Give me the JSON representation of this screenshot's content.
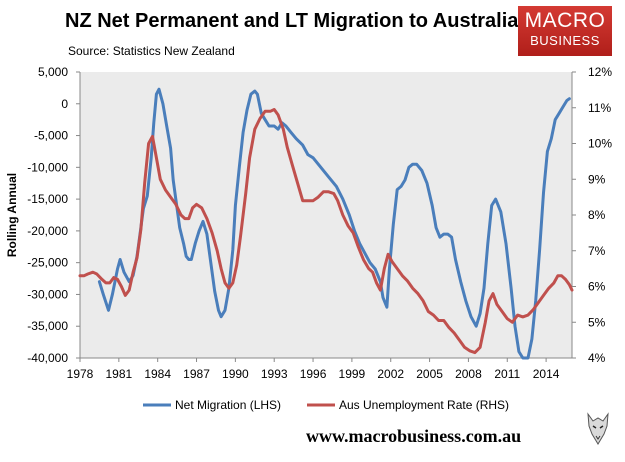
{
  "header": {
    "title": "NZ Net Permanent and LT Migration to Australia",
    "subtitle": "Source: Statistics New Zealand"
  },
  "logo": {
    "line1": "MACRO",
    "line2": "BUSINESS"
  },
  "footer": {
    "website": "www.macrobusiness.com.au"
  },
  "colors": {
    "net_migration": "#4a7ebb",
    "unemployment": "#c0504d",
    "plot_background": "#ebebeb"
  },
  "chart_data": {
    "type": "line",
    "title": "NZ Net Permanent and LT Migration to Australia",
    "subtitle": "Source: Statistics New Zealand",
    "ylabel": "Rolling Annual",
    "xlim": [
      1978,
      2016
    ],
    "ylim_left": [
      -40000,
      5000
    ],
    "ylim_right": [
      4,
      12
    ],
    "grid": false,
    "legend": "bottom",
    "x_ticks": [
      "1978",
      "1981",
      "1984",
      "1987",
      "1990",
      "1993",
      "1996",
      "1999",
      "2002",
      "2005",
      "2008",
      "2011",
      "2014"
    ],
    "y_ticks_left": [
      "5,000",
      "0",
      "-5,000",
      "-10,000",
      "-15,000",
      "-20,000",
      "-25,000",
      "-30,000",
      "-35,000",
      "-40,000"
    ],
    "y_ticks_right": [
      "12%",
      "11%",
      "10%",
      "9%",
      "8%",
      "7%",
      "6%",
      "5%",
      "4%"
    ],
    "series": [
      {
        "name": "Net Migration (LHS)",
        "axis": "left",
        "points": [
          [
            1979.5,
            -28000
          ],
          [
            1979.8,
            -30000
          ],
          [
            1980.2,
            -32500
          ],
          [
            1980.5,
            -30000
          ],
          [
            1980.9,
            -26000
          ],
          [
            1981.1,
            -24500
          ],
          [
            1981.4,
            -26500
          ],
          [
            1981.8,
            -28000
          ],
          [
            1982.1,
            -27000
          ],
          [
            1982.4,
            -24000
          ],
          [
            1982.6,
            -21000
          ],
          [
            1982.9,
            -16500
          ],
          [
            1983.2,
            -14500
          ],
          [
            1983.5,
            -8500
          ],
          [
            1983.7,
            -3000
          ],
          [
            1983.9,
            1500
          ],
          [
            1984.1,
            2300
          ],
          [
            1984.4,
            0
          ],
          [
            1984.7,
            -3500
          ],
          [
            1985.0,
            -7000
          ],
          [
            1985.2,
            -12000
          ],
          [
            1985.4,
            -15000
          ],
          [
            1985.7,
            -19500
          ],
          [
            1986.0,
            -22000
          ],
          [
            1986.2,
            -24000
          ],
          [
            1986.4,
            -24500
          ],
          [
            1986.6,
            -24500
          ],
          [
            1986.9,
            -22000
          ],
          [
            1987.2,
            -20000
          ],
          [
            1987.5,
            -18500
          ],
          [
            1987.8,
            -20500
          ],
          [
            1988.1,
            -25000
          ],
          [
            1988.4,
            -29500
          ],
          [
            1988.7,
            -32500
          ],
          [
            1988.9,
            -33500
          ],
          [
            1989.2,
            -32500
          ],
          [
            1989.5,
            -29000
          ],
          [
            1989.8,
            -23000
          ],
          [
            1990.0,
            -16000
          ],
          [
            1990.3,
            -10000
          ],
          [
            1990.6,
            -4500
          ],
          [
            1990.9,
            -1000
          ],
          [
            1991.2,
            1500
          ],
          [
            1991.5,
            2000
          ],
          [
            1991.7,
            1500
          ],
          [
            1992.0,
            -1500
          ],
          [
            1992.3,
            -2500
          ],
          [
            1992.6,
            -3500
          ],
          [
            1993.0,
            -3500
          ],
          [
            1993.3,
            -4000
          ],
          [
            1993.6,
            -3000
          ],
          [
            1993.9,
            -3500
          ],
          [
            1994.3,
            -4500
          ],
          [
            1994.7,
            -5500
          ],
          [
            1995.2,
            -6500
          ],
          [
            1995.6,
            -8000
          ],
          [
            1996.0,
            -8500
          ],
          [
            1996.6,
            -10000
          ],
          [
            1997.2,
            -11500
          ],
          [
            1997.8,
            -13000
          ],
          [
            1998.3,
            -15000
          ],
          [
            1998.8,
            -17500
          ],
          [
            1999.2,
            -20000
          ],
          [
            1999.6,
            -22000
          ],
          [
            2000.0,
            -23500
          ],
          [
            2000.4,
            -25000
          ],
          [
            2000.8,
            -26000
          ],
          [
            2001.2,
            -28000
          ],
          [
            2001.4,
            -30500
          ],
          [
            2001.7,
            -32000
          ],
          [
            2001.9,
            -26000
          ],
          [
            2002.2,
            -19000
          ],
          [
            2002.5,
            -13500
          ],
          [
            2002.8,
            -13000
          ],
          [
            2003.1,
            -12000
          ],
          [
            2003.4,
            -10000
          ],
          [
            2003.7,
            -9500
          ],
          [
            2004.0,
            -9500
          ],
          [
            2004.4,
            -10500
          ],
          [
            2004.8,
            -12500
          ],
          [
            2005.2,
            -16000
          ],
          [
            2005.5,
            -19500
          ],
          [
            2005.8,
            -21000
          ],
          [
            2006.1,
            -20500
          ],
          [
            2006.4,
            -20500
          ],
          [
            2006.7,
            -21000
          ],
          [
            2007.0,
            -24500
          ],
          [
            2007.4,
            -28000
          ],
          [
            2007.8,
            -31000
          ],
          [
            2008.2,
            -33500
          ],
          [
            2008.6,
            -35000
          ],
          [
            2008.9,
            -33000
          ],
          [
            2009.2,
            -29000
          ],
          [
            2009.5,
            -22000
          ],
          [
            2009.8,
            -16000
          ],
          [
            2010.1,
            -15000
          ],
          [
            2010.5,
            -17000
          ],
          [
            2010.9,
            -22000
          ],
          [
            2011.3,
            -29000
          ],
          [
            2011.6,
            -35000
          ],
          [
            2011.9,
            -39000
          ],
          [
            2012.2,
            -40000
          ],
          [
            2012.6,
            -40000
          ],
          [
            2012.9,
            -37000
          ],
          [
            2013.2,
            -31000
          ],
          [
            2013.5,
            -23000
          ],
          [
            2013.8,
            -14000
          ],
          [
            2014.1,
            -7500
          ],
          [
            2014.4,
            -5500
          ],
          [
            2014.7,
            -2500
          ],
          [
            2015.0,
            -1500
          ],
          [
            2015.3,
            -500
          ],
          [
            2015.6,
            500
          ],
          [
            2015.8,
            800
          ]
        ]
      },
      {
        "name": "Aus Unemployment Rate (RHS)",
        "axis": "right",
        "points": [
          [
            1978.0,
            6.3
          ],
          [
            1978.3,
            6.3
          ],
          [
            1978.6,
            6.35
          ],
          [
            1979.0,
            6.4
          ],
          [
            1979.3,
            6.35
          ],
          [
            1979.7,
            6.2
          ],
          [
            1980.0,
            6.1
          ],
          [
            1980.3,
            6.1
          ],
          [
            1980.6,
            6.25
          ],
          [
            1980.9,
            6.2
          ],
          [
            1981.2,
            6.0
          ],
          [
            1981.5,
            5.75
          ],
          [
            1981.8,
            5.9
          ],
          [
            1982.1,
            6.4
          ],
          [
            1982.4,
            6.8
          ],
          [
            1982.7,
            7.6
          ],
          [
            1983.0,
            8.9
          ],
          [
            1983.3,
            10.0
          ],
          [
            1983.6,
            10.2
          ],
          [
            1983.9,
            9.6
          ],
          [
            1984.2,
            9.0
          ],
          [
            1984.6,
            8.7
          ],
          [
            1985.0,
            8.5
          ],
          [
            1985.4,
            8.3
          ],
          [
            1985.8,
            8.0
          ],
          [
            1986.1,
            7.9
          ],
          [
            1986.4,
            7.9
          ],
          [
            1986.7,
            8.2
          ],
          [
            1987.0,
            8.3
          ],
          [
            1987.4,
            8.2
          ],
          [
            1987.8,
            7.9
          ],
          [
            1988.2,
            7.5
          ],
          [
            1988.6,
            7.0
          ],
          [
            1988.9,
            6.5
          ],
          [
            1989.2,
            6.1
          ],
          [
            1989.5,
            5.95
          ],
          [
            1989.8,
            6.1
          ],
          [
            1990.1,
            6.6
          ],
          [
            1990.4,
            7.4
          ],
          [
            1990.8,
            8.6
          ],
          [
            1991.1,
            9.6
          ],
          [
            1991.5,
            10.4
          ],
          [
            1991.9,
            10.7
          ],
          [
            1992.3,
            10.9
          ],
          [
            1992.7,
            10.9
          ],
          [
            1993.0,
            10.95
          ],
          [
            1993.3,
            10.8
          ],
          [
            1993.7,
            10.4
          ],
          [
            1994.0,
            9.9
          ],
          [
            1994.4,
            9.4
          ],
          [
            1994.8,
            8.9
          ],
          [
            1995.2,
            8.4
          ],
          [
            1995.6,
            8.4
          ],
          [
            1996.0,
            8.4
          ],
          [
            1996.4,
            8.5
          ],
          [
            1996.8,
            8.65
          ],
          [
            1997.2,
            8.65
          ],
          [
            1997.6,
            8.6
          ],
          [
            1997.9,
            8.4
          ],
          [
            1998.3,
            8.0
          ],
          [
            1998.7,
            7.7
          ],
          [
            1999.1,
            7.5
          ],
          [
            1999.5,
            7.1
          ],
          [
            1999.9,
            6.75
          ],
          [
            2000.3,
            6.5
          ],
          [
            2000.6,
            6.4
          ],
          [
            2000.9,
            6.1
          ],
          [
            2001.2,
            5.9
          ],
          [
            2001.5,
            6.5
          ],
          [
            2001.8,
            6.9
          ],
          [
            2002.1,
            6.7
          ],
          [
            2002.5,
            6.5
          ],
          [
            2002.9,
            6.3
          ],
          [
            2003.3,
            6.15
          ],
          [
            2003.7,
            5.95
          ],
          [
            2004.1,
            5.8
          ],
          [
            2004.5,
            5.6
          ],
          [
            2004.9,
            5.3
          ],
          [
            2005.3,
            5.2
          ],
          [
            2005.7,
            5.05
          ],
          [
            2006.1,
            5.05
          ],
          [
            2006.5,
            4.85
          ],
          [
            2006.9,
            4.7
          ],
          [
            2007.3,
            4.5
          ],
          [
            2007.7,
            4.3
          ],
          [
            2008.1,
            4.2
          ],
          [
            2008.5,
            4.15
          ],
          [
            2008.9,
            4.3
          ],
          [
            2009.3,
            5.0
          ],
          [
            2009.6,
            5.6
          ],
          [
            2009.9,
            5.8
          ],
          [
            2010.2,
            5.5
          ],
          [
            2010.6,
            5.3
          ],
          [
            2011.0,
            5.1
          ],
          [
            2011.4,
            5.0
          ],
          [
            2011.8,
            5.2
          ],
          [
            2012.2,
            5.15
          ],
          [
            2012.6,
            5.2
          ],
          [
            2013.0,
            5.35
          ],
          [
            2013.4,
            5.55
          ],
          [
            2013.8,
            5.75
          ],
          [
            2014.2,
            5.95
          ],
          [
            2014.6,
            6.1
          ],
          [
            2014.9,
            6.3
          ],
          [
            2015.2,
            6.3
          ],
          [
            2015.5,
            6.2
          ],
          [
            2015.8,
            6.05
          ],
          [
            2016.0,
            5.9
          ]
        ]
      }
    ]
  }
}
